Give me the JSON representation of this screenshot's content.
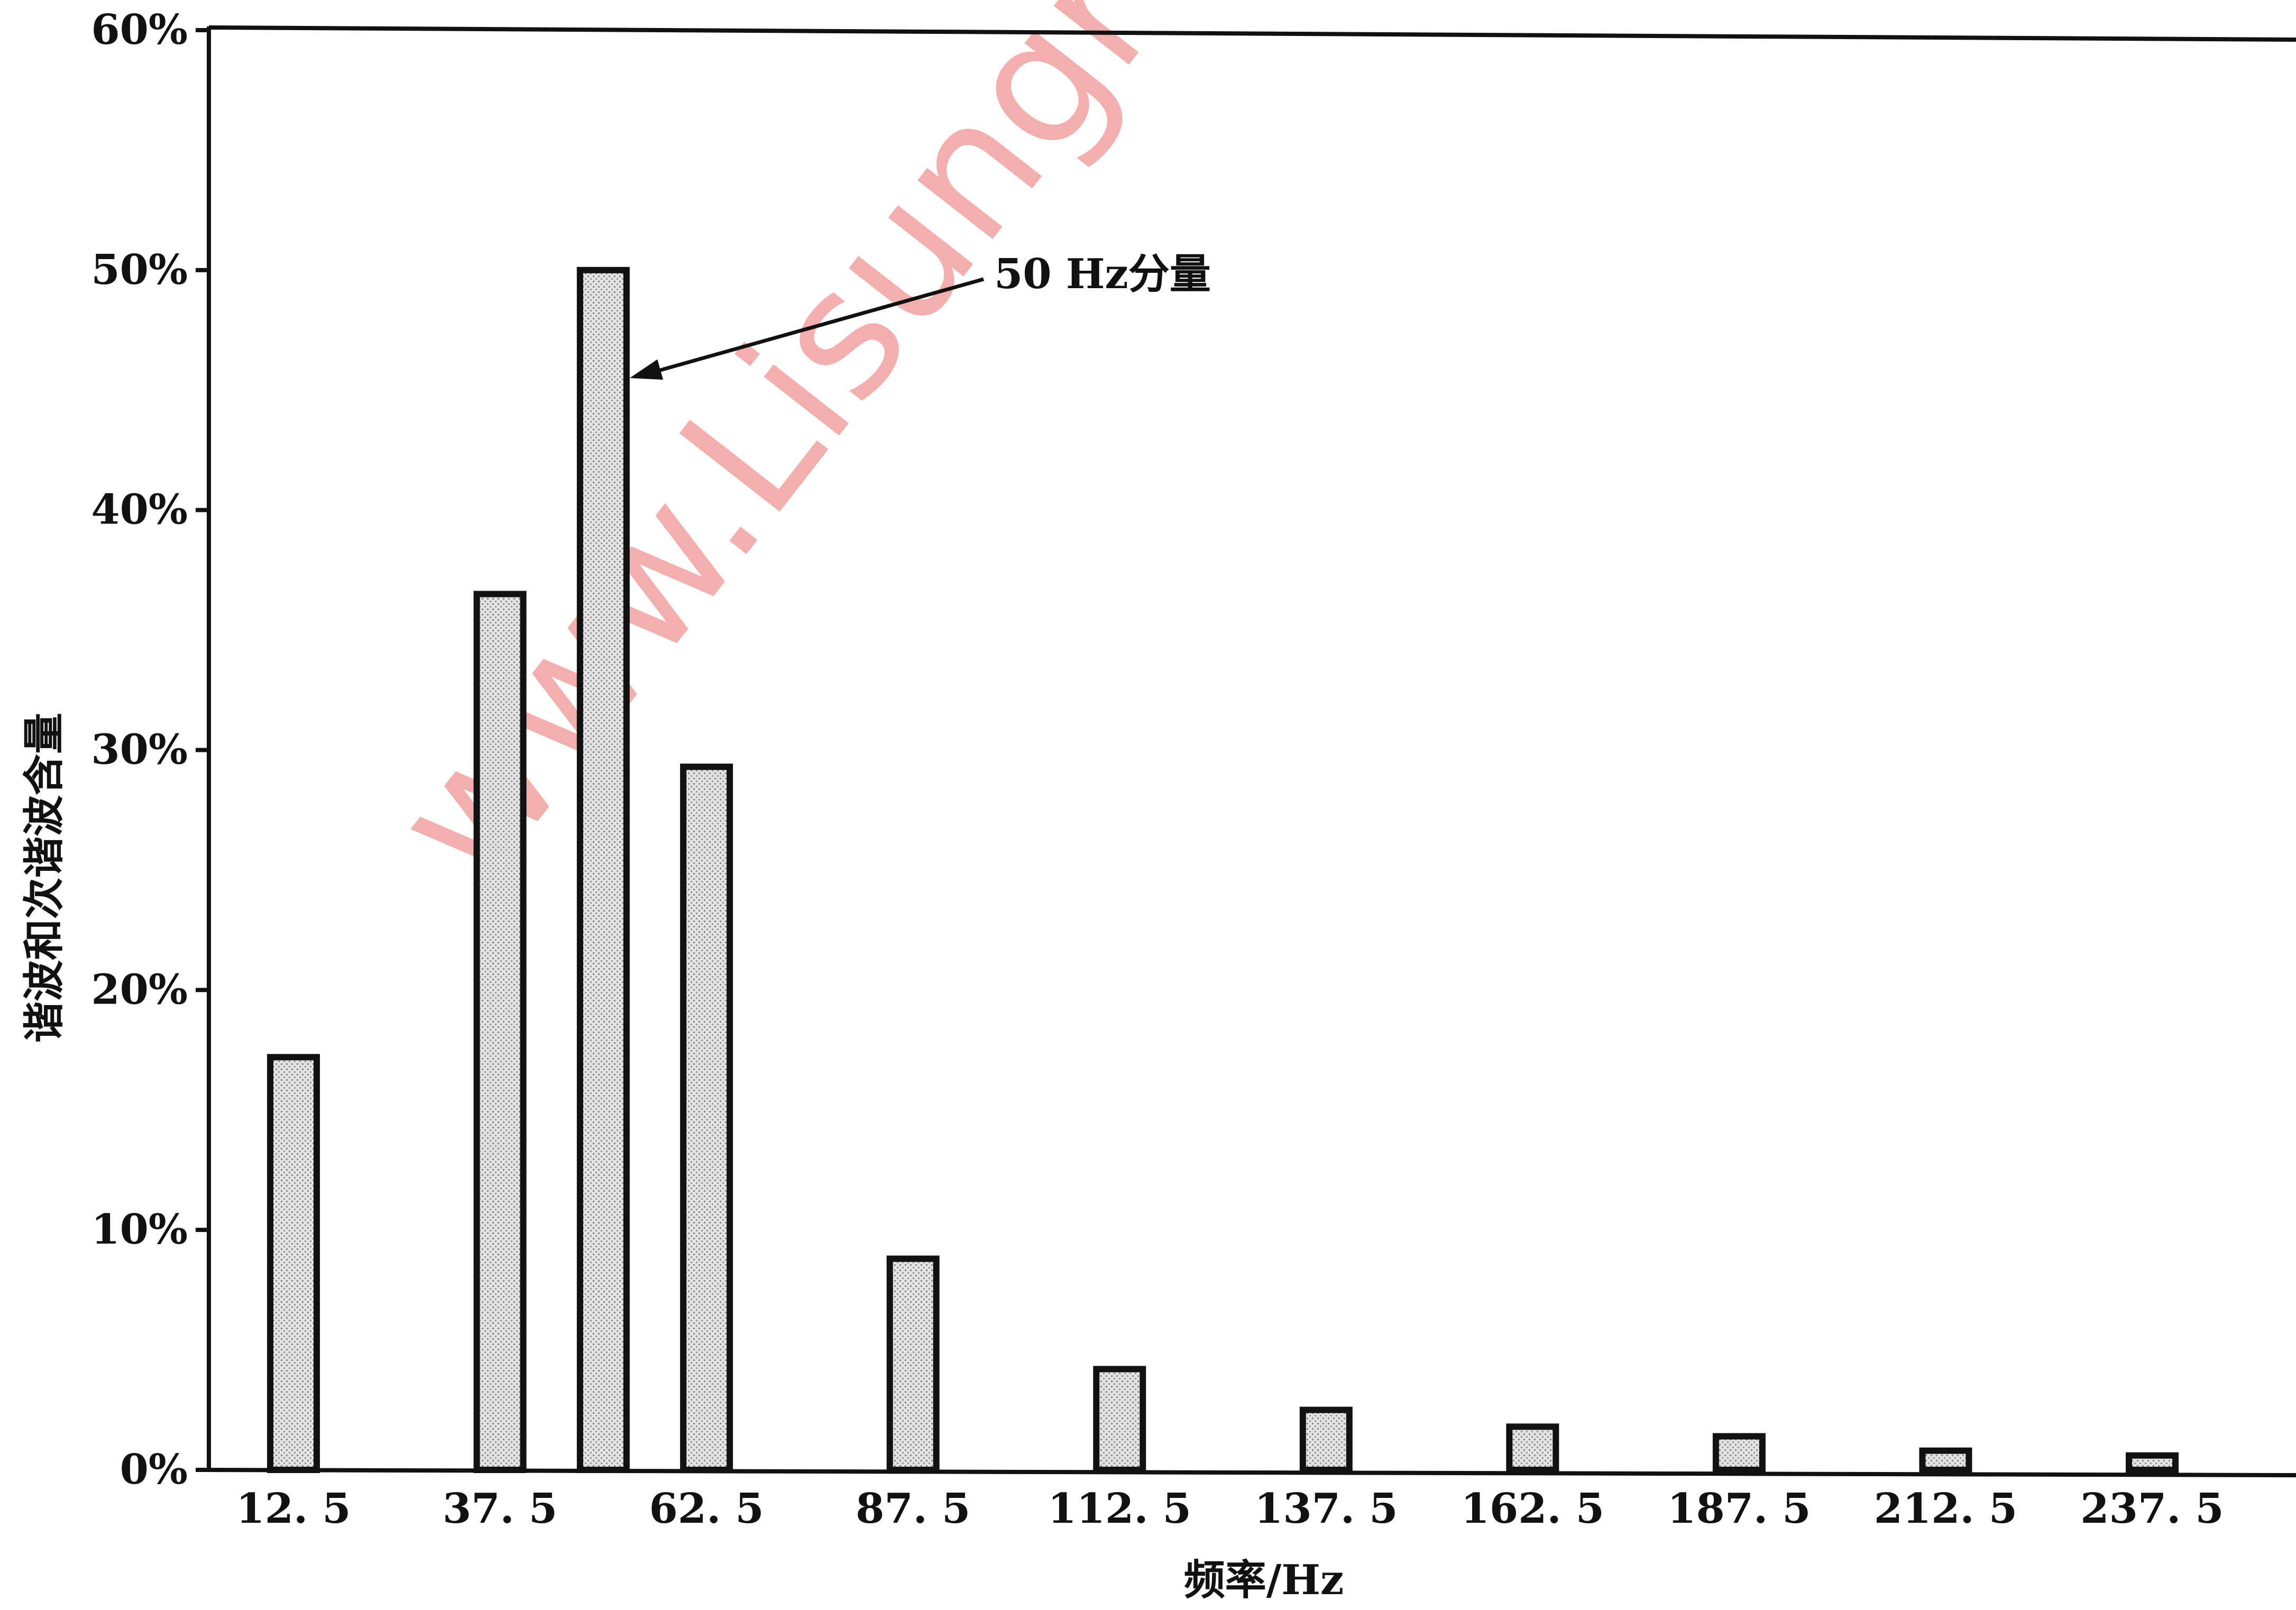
{
  "chart_data": {
    "type": "bar",
    "categories": [
      "12.5",
      "37.5",
      "50",
      "62.5",
      "87.5",
      "112.5",
      "137.5",
      "162.5",
      "187.5",
      "212.5",
      "237.5"
    ],
    "x_values": [
      12.5,
      37.5,
      50,
      62.5,
      87.5,
      112.5,
      137.5,
      162.5,
      187.5,
      212.5,
      237.5
    ],
    "x_tick_labels": [
      "12. 5",
      "37. 5",
      "62. 5",
      "87. 5",
      "112. 5",
      "137. 5",
      "162. 5",
      "187. 5",
      "212. 5",
      "237. 5"
    ],
    "x_tick_values": [
      12.5,
      37.5,
      62.5,
      87.5,
      112.5,
      137.5,
      162.5,
      187.5,
      212.5,
      237.5
    ],
    "values": [
      17.2,
      36.5,
      50.0,
      29.3,
      8.8,
      4.2,
      2.5,
      1.8,
      1.4,
      0.8,
      0.6
    ],
    "y_unit": "%",
    "ylim": [
      0,
      60
    ],
    "y_ticks": [
      0,
      10,
      20,
      30,
      40,
      50,
      60
    ],
    "y_tick_labels": [
      "0%",
      "10%",
      "20%",
      "30%",
      "40%",
      "50%",
      "60%"
    ],
    "xlabel": "频率/Hz",
    "ylabel": "谐波和次谐波含量",
    "grid": false,
    "annotations": [
      {
        "text": "50 Hz分量",
        "target_x": 50,
        "target_y": 45.5
      }
    ],
    "watermark": "www.Lisungr",
    "colors": {
      "bar_fill": "#c8c8c8",
      "bar_edge": "#111111",
      "watermark": "#f2a0a0"
    }
  }
}
